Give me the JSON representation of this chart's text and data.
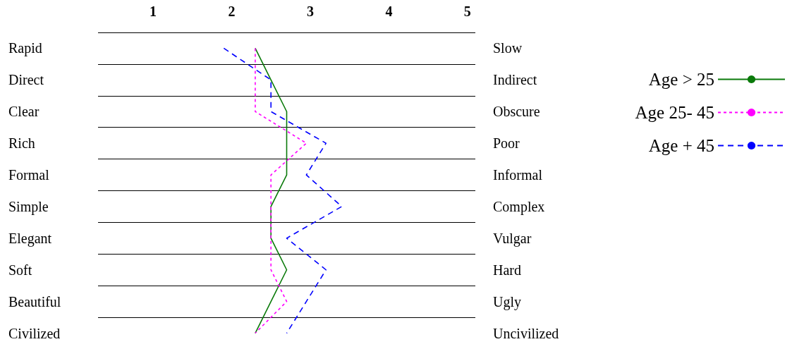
{
  "chart_data": {
    "type": "line",
    "orientation": "horizontal",
    "categories": [
      "Rapid",
      "Direct",
      "Clear",
      "Rich",
      "Formal",
      "Simple",
      "Elegant",
      "Soft",
      "Beautiful",
      "Civilized"
    ],
    "y2_categories": [
      "Slow",
      "Indirect",
      "Obscure",
      "Poor",
      "Informal",
      "Complex",
      "Vulgar",
      "Hard",
      "Ugly",
      "Uncivilized"
    ],
    "xlim": [
      0.3,
      5.1
    ],
    "xticks": [
      1,
      2,
      3,
      4,
      5
    ],
    "series": [
      {
        "name": "Age > 25",
        "color": "#0a7a0a",
        "line_style": "solid",
        "values": [
          2.3,
          2.5,
          2.7,
          2.7,
          2.7,
          2.5,
          2.5,
          2.7,
          2.5,
          2.3
        ]
      },
      {
        "name": "Age 25- 45",
        "color": "#ff00ff",
        "line_style": "dotted",
        "values": [
          2.3,
          2.3,
          2.3,
          2.95,
          2.5,
          2.5,
          2.5,
          2.5,
          2.7,
          2.3
        ]
      },
      {
        "name": "Age + 45",
        "color": "#0000ff",
        "line_style": "dashed",
        "values": [
          1.9,
          2.5,
          2.5,
          3.2,
          2.95,
          3.4,
          2.7,
          3.2,
          2.95,
          2.7
        ]
      }
    ],
    "marker": "none",
    "grid": "y",
    "legend": "right"
  }
}
